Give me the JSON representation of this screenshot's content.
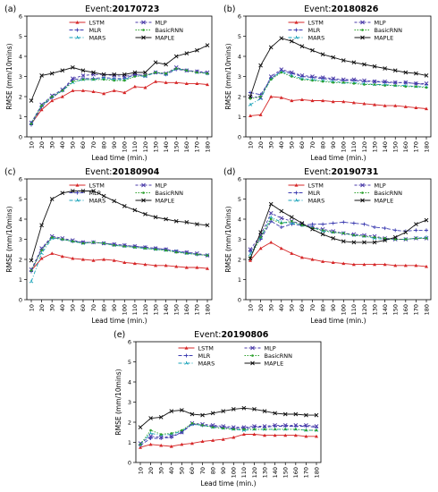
{
  "chart_data": [
    {
      "type": "line",
      "panel_label": "(a)",
      "title_prefix": "Event: ",
      "event": "20170723",
      "xlabel": "Lead time (min.)",
      "ylabel": "RMSE (mm/10mins)",
      "x": [
        10,
        20,
        30,
        40,
        50,
        60,
        70,
        80,
        90,
        100,
        110,
        120,
        130,
        140,
        150,
        160,
        170,
        180
      ],
      "ylim": [
        0,
        6
      ],
      "yticks": [
        0,
        1,
        2,
        3,
        4,
        5,
        6
      ],
      "legend_position": "top",
      "series": [
        {
          "name": "LSTM",
          "values": [
            0.65,
            1.35,
            1.8,
            2.0,
            2.3,
            2.3,
            2.25,
            2.15,
            2.3,
            2.2,
            2.5,
            2.45,
            2.75,
            2.7,
            2.7,
            2.65,
            2.65,
            2.6
          ]
        },
        {
          "name": "MLR",
          "values": [
            0.6,
            1.5,
            1.95,
            2.3,
            2.85,
            2.9,
            2.9,
            2.95,
            2.9,
            2.9,
            3.1,
            3.05,
            3.2,
            3.1,
            3.35,
            3.3,
            3.25,
            3.15
          ]
        },
        {
          "name": "MARS",
          "values": [
            0.7,
            1.55,
            2.0,
            2.3,
            2.7,
            2.85,
            2.85,
            2.9,
            2.85,
            2.85,
            3.05,
            3.0,
            3.2,
            3.1,
            3.4,
            3.3,
            3.2,
            3.15
          ]
        },
        {
          "name": "MLP",
          "values": [
            0.7,
            1.6,
            2.05,
            2.35,
            2.9,
            3.05,
            3.1,
            3.1,
            3.05,
            3.0,
            3.1,
            3.05,
            3.2,
            3.15,
            3.45,
            3.3,
            3.25,
            3.2
          ]
        },
        {
          "name": "BasicRNN",
          "values": [
            0.65,
            1.55,
            2.0,
            2.3,
            2.75,
            2.85,
            2.85,
            2.85,
            2.8,
            2.8,
            3.0,
            3.05,
            3.2,
            3.15,
            3.4,
            3.3,
            3.2,
            3.15
          ]
        },
        {
          "name": "MAPLE",
          "values": [
            1.8,
            3.05,
            3.15,
            3.3,
            3.45,
            3.3,
            3.2,
            3.1,
            3.1,
            3.1,
            3.2,
            3.2,
            3.7,
            3.6,
            4.0,
            4.15,
            4.3,
            4.55
          ]
        }
      ]
    },
    {
      "type": "line",
      "panel_label": "(b)",
      "title_prefix": "Event: ",
      "event": "20180826",
      "xlabel": "Lead time (min.)",
      "ylabel": "RMSE (mm/10mins)",
      "x": [
        10,
        20,
        30,
        40,
        50,
        60,
        70,
        80,
        90,
        100,
        110,
        120,
        130,
        140,
        150,
        160,
        170,
        180
      ],
      "ylim": [
        0,
        6
      ],
      "yticks": [
        0,
        1,
        2,
        3,
        4,
        5,
        6
      ],
      "legend_position": "top-right",
      "series": [
        {
          "name": "LSTM",
          "values": [
            1.05,
            1.1,
            2.0,
            1.95,
            1.8,
            1.85,
            1.8,
            1.8,
            1.75,
            1.75,
            1.7,
            1.65,
            1.6,
            1.55,
            1.55,
            1.5,
            1.45,
            1.4
          ]
        },
        {
          "name": "MLR",
          "values": [
            2.2,
            2.1,
            2.9,
            3.3,
            3.15,
            3.0,
            2.95,
            2.9,
            2.85,
            2.8,
            2.8,
            2.75,
            2.75,
            2.7,
            2.7,
            2.7,
            2.65,
            2.6
          ]
        },
        {
          "name": "MARS",
          "values": [
            1.6,
            1.9,
            2.9,
            3.25,
            3.05,
            2.9,
            2.85,
            2.8,
            2.75,
            2.7,
            2.7,
            2.65,
            2.6,
            2.6,
            2.55,
            2.55,
            2.5,
            2.5
          ]
        },
        {
          "name": "MLP",
          "values": [
            2.0,
            1.95,
            3.0,
            3.35,
            3.2,
            3.05,
            3.0,
            2.95,
            2.9,
            2.85,
            2.85,
            2.8,
            2.75,
            2.75,
            2.7,
            2.7,
            2.65,
            2.65
          ]
        },
        {
          "name": "BasicRNN",
          "values": [
            1.9,
            2.0,
            2.85,
            3.2,
            3.0,
            2.85,
            2.8,
            2.75,
            2.7,
            2.7,
            2.65,
            2.6,
            2.6,
            2.55,
            2.55,
            2.5,
            2.5,
            2.45
          ]
        },
        {
          "name": "MAPLE",
          "values": [
            2.0,
            3.55,
            4.45,
            4.9,
            4.75,
            4.5,
            4.3,
            4.1,
            3.95,
            3.8,
            3.7,
            3.6,
            3.5,
            3.4,
            3.3,
            3.2,
            3.15,
            3.05
          ]
        }
      ]
    },
    {
      "type": "line",
      "panel_label": "(c)",
      "title_prefix": "Event: ",
      "event": "20180904",
      "xlabel": "Lead time (min.)",
      "ylabel": "RMSE (mm/10mins)",
      "x": [
        10,
        20,
        30,
        40,
        50,
        60,
        70,
        80,
        90,
        100,
        110,
        120,
        130,
        140,
        150,
        160,
        170,
        180
      ],
      "ylim": [
        0,
        6
      ],
      "yticks": [
        0,
        1,
        2,
        3,
        4,
        5,
        6
      ],
      "legend_position": "top-right",
      "series": [
        {
          "name": "LSTM",
          "values": [
            1.45,
            2.05,
            2.3,
            2.15,
            2.05,
            2.0,
            1.95,
            2.0,
            1.95,
            1.85,
            1.8,
            1.75,
            1.7,
            1.7,
            1.65,
            1.6,
            1.6,
            1.55
          ]
        },
        {
          "name": "MLR",
          "values": [
            1.4,
            2.5,
            3.1,
            3.0,
            2.9,
            2.85,
            2.85,
            2.8,
            2.75,
            2.7,
            2.65,
            2.6,
            2.55,
            2.5,
            2.4,
            2.35,
            2.25,
            2.2
          ]
        },
        {
          "name": "MARS",
          "values": [
            0.9,
            2.3,
            3.05,
            3.0,
            2.9,
            2.8,
            2.85,
            2.8,
            2.7,
            2.65,
            2.6,
            2.55,
            2.5,
            2.45,
            2.4,
            2.3,
            2.25,
            2.2
          ]
        },
        {
          "name": "MLP",
          "values": [
            1.5,
            2.55,
            3.15,
            3.05,
            2.95,
            2.85,
            2.85,
            2.8,
            2.75,
            2.7,
            2.65,
            2.6,
            2.55,
            2.5,
            2.4,
            2.35,
            2.3,
            2.2
          ]
        },
        {
          "name": "BasicRNN",
          "values": [
            1.45,
            2.45,
            3.1,
            3.0,
            2.9,
            2.8,
            2.85,
            2.8,
            2.7,
            2.65,
            2.6,
            2.55,
            2.5,
            2.45,
            2.35,
            2.3,
            2.25,
            2.2
          ]
        },
        {
          "name": "MAPLE",
          "values": [
            1.95,
            3.7,
            5.0,
            5.3,
            5.4,
            5.4,
            5.4,
            5.15,
            4.9,
            4.65,
            4.45,
            4.25,
            4.1,
            4.0,
            3.9,
            3.85,
            3.75,
            3.7
          ]
        }
      ]
    },
    {
      "type": "line",
      "panel_label": "(d)",
      "title_prefix": "Event: ",
      "event": "20190731",
      "xlabel": "Lead time (min.)",
      "ylabel": "RMSE (mm/10mins)",
      "x": [
        10,
        20,
        30,
        40,
        50,
        60,
        70,
        80,
        90,
        100,
        110,
        120,
        130,
        140,
        150,
        160,
        170,
        180
      ],
      "ylim": [
        0,
        6
      ],
      "yticks": [
        0,
        1,
        2,
        3,
        4,
        5,
        6
      ],
      "legend_position": "top-right",
      "series": [
        {
          "name": "LSTM",
          "values": [
            1.95,
            2.55,
            2.85,
            2.55,
            2.3,
            2.1,
            2.0,
            1.9,
            1.85,
            1.8,
            1.75,
            1.75,
            1.75,
            1.75,
            1.7,
            1.7,
            1.7,
            1.65
          ]
        },
        {
          "name": "MLR",
          "values": [
            2.4,
            3.0,
            3.9,
            3.6,
            3.75,
            3.7,
            3.75,
            3.75,
            3.8,
            3.85,
            3.8,
            3.75,
            3.6,
            3.55,
            3.45,
            3.4,
            3.45,
            3.45
          ]
        },
        {
          "name": "MARS",
          "values": [
            2.25,
            3.1,
            4.1,
            3.85,
            3.8,
            3.7,
            3.6,
            3.4,
            3.35,
            3.3,
            3.2,
            3.15,
            3.05,
            3.0,
            3.0,
            3.0,
            3.05,
            3.1
          ]
        },
        {
          "name": "MLP",
          "values": [
            2.5,
            3.2,
            4.3,
            4.05,
            3.9,
            3.75,
            3.6,
            3.5,
            3.4,
            3.3,
            3.25,
            3.2,
            3.15,
            3.05,
            3.0,
            3.0,
            3.05,
            3.05
          ]
        },
        {
          "name": "BasicRNN",
          "values": [
            2.1,
            3.1,
            4.0,
            3.8,
            3.9,
            3.7,
            3.55,
            3.45,
            3.35,
            3.3,
            3.2,
            3.15,
            3.1,
            3.05,
            3.0,
            3.0,
            3.05,
            3.05
          ]
        },
        {
          "name": "MAPLE",
          "values": [
            2.05,
            3.35,
            4.75,
            4.4,
            4.1,
            3.8,
            3.5,
            3.25,
            3.05,
            2.9,
            2.85,
            2.85,
            2.85,
            2.95,
            3.1,
            3.35,
            3.75,
            3.95
          ]
        }
      ]
    },
    {
      "type": "line",
      "panel_label": "(e)",
      "title_prefix": "Event: ",
      "event": "20190806",
      "xlabel": "Lead time (min.)",
      "ylabel": "RMSE (mm/10mins)",
      "x": [
        10,
        20,
        30,
        40,
        50,
        60,
        70,
        80,
        90,
        100,
        110,
        120,
        130,
        140,
        150,
        160,
        170,
        180
      ],
      "ylim": [
        0,
        6
      ],
      "yticks": [
        0,
        1,
        2,
        3,
        4,
        5,
        6
      ],
      "legend_position": "top-right",
      "series": [
        {
          "name": "LSTM",
          "values": [
            0.75,
            0.9,
            0.85,
            0.8,
            0.9,
            0.95,
            1.05,
            1.1,
            1.15,
            1.25,
            1.4,
            1.4,
            1.35,
            1.35,
            1.35,
            1.35,
            1.3,
            1.3
          ]
        },
        {
          "name": "MLR",
          "values": [
            0.85,
            1.2,
            1.2,
            1.25,
            1.5,
            1.9,
            1.85,
            1.8,
            1.75,
            1.7,
            1.7,
            1.75,
            1.75,
            1.8,
            1.8,
            1.8,
            1.8,
            1.75
          ]
        },
        {
          "name": "MARS",
          "values": [
            0.9,
            1.45,
            1.35,
            1.4,
            1.55,
            1.9,
            1.85,
            1.75,
            1.7,
            1.65,
            1.6,
            1.65,
            1.65,
            1.65,
            1.65,
            1.65,
            1.6,
            1.6
          ]
        },
        {
          "name": "MLP",
          "values": [
            0.95,
            1.3,
            1.25,
            1.3,
            1.5,
            1.95,
            1.9,
            1.85,
            1.8,
            1.75,
            1.75,
            1.8,
            1.8,
            1.85,
            1.85,
            1.85,
            1.85,
            1.8
          ]
        },
        {
          "name": "BasicRNN",
          "values": [
            0.9,
            1.6,
            1.4,
            1.45,
            1.6,
            1.95,
            1.85,
            1.75,
            1.7,
            1.65,
            1.65,
            1.65,
            1.65,
            1.65,
            1.65,
            1.65,
            1.6,
            1.6
          ]
        },
        {
          "name": "MAPLE",
          "values": [
            1.75,
            2.2,
            2.25,
            2.55,
            2.6,
            2.4,
            2.35,
            2.45,
            2.55,
            2.65,
            2.7,
            2.65,
            2.55,
            2.45,
            2.4,
            2.4,
            2.35,
            2.35
          ]
        }
      ]
    }
  ],
  "styles": {
    "LSTM": {
      "color": "#d62728",
      "marker": "triangle",
      "dash": ""
    },
    "MLR": {
      "color": "#3b3bb0",
      "marker": "plus",
      "dash": "4,2"
    },
    "MARS": {
      "color": "#17a2b8",
      "marker": "tri",
      "dash": "4,2,1,2"
    },
    "MLP": {
      "color": "#4a3aa8",
      "marker": "x",
      "dash": "3,2"
    },
    "BasicRNN": {
      "color": "#2ca02c",
      "marker": "dot",
      "dash": "1.5,1.5"
    },
    "MAPLE": {
      "color": "#111111",
      "marker": "x",
      "dash": ""
    }
  }
}
